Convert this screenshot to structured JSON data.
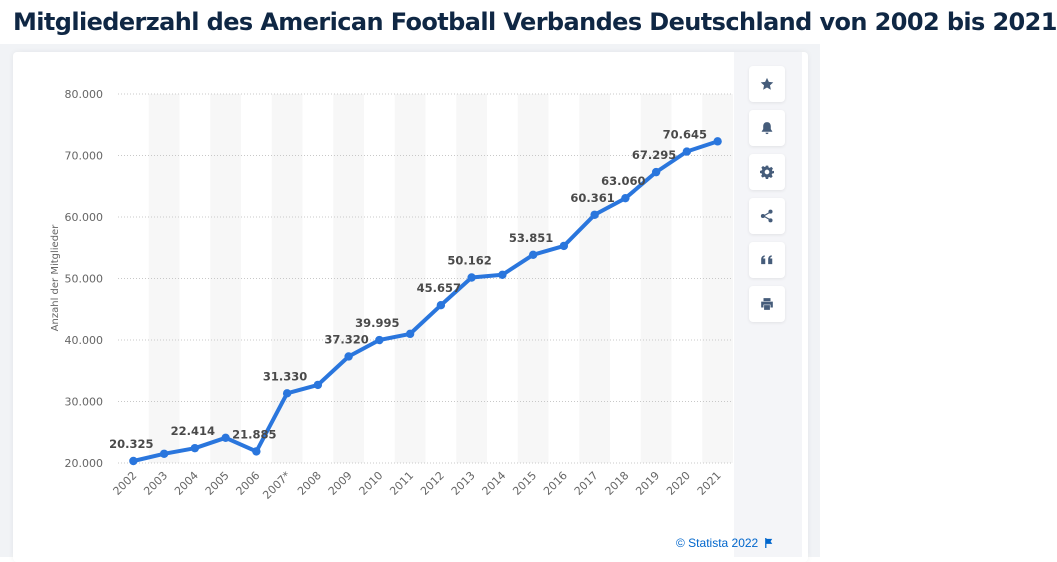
{
  "page": {
    "title": "Mitgliederzahl des American Football Verbandes Deutschland von 2002 bis 2021",
    "copyright": "© Statista 2022",
    "toolbar": [
      {
        "name": "favorite",
        "icon": "star-icon"
      },
      {
        "name": "notification",
        "icon": "bell-icon"
      },
      {
        "name": "settings",
        "icon": "gear-icon"
      },
      {
        "name": "share",
        "icon": "share-icon"
      },
      {
        "name": "cite",
        "icon": "quote-icon"
      },
      {
        "name": "print",
        "icon": "printer-icon"
      }
    ]
  },
  "colors": {
    "line": "#2a76dd",
    "label": "#4a4a4a",
    "axis_text": "#666666",
    "band": "#f7f7f7",
    "grid": "#c8c8c8"
  },
  "chart_data": {
    "type": "line",
    "title": "Mitgliederzahl des American Football Verbandes Deutschland von 2002 bis 2021",
    "xlabel": "",
    "ylabel": "Anzahl der Mitglieder",
    "categories": [
      "2002",
      "2003",
      "2004",
      "2005",
      "2006",
      "2007*",
      "2008",
      "2009",
      "2010",
      "2011",
      "2012",
      "2013",
      "2014",
      "2015",
      "2016",
      "2017",
      "2018",
      "2019",
      "2020",
      "2021"
    ],
    "series": [
      {
        "name": "Mitglieder",
        "values": [
          20325,
          21500,
          22414,
          24100,
          21885,
          31330,
          32700,
          37320,
          39995,
          41000,
          45657,
          50162,
          50600,
          53851,
          55300,
          60361,
          63060,
          67295,
          70645,
          72300
        ],
        "data_labels": [
          "20.325",
          "",
          "22.414",
          "",
          "21.885",
          "31.330",
          "",
          "37.320",
          "39.995",
          "",
          "45.657",
          "50.162",
          "",
          "53.851",
          "",
          "60.361",
          "63.060",
          "67.295",
          "70.645",
          ""
        ]
      }
    ],
    "yticks": [
      20000,
      30000,
      40000,
      50000,
      60000,
      70000,
      80000
    ],
    "ytick_labels": [
      "20.000",
      "30.000",
      "40.000",
      "50.000",
      "60.000",
      "70.000",
      "80.000"
    ],
    "ylim": [
      20000,
      80000
    ],
    "grid": "horizontal-dotted",
    "legend": "none"
  }
}
